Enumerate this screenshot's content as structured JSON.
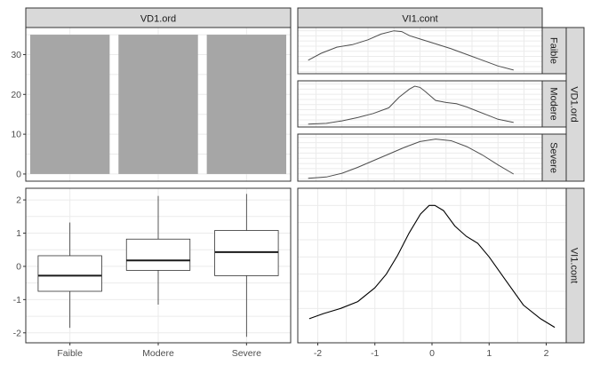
{
  "chart_data": [
    {
      "type": "bar",
      "panel": "top-left",
      "col_strip": "VD1.ord",
      "categories": [
        "Faible",
        "Modere",
        "Severe"
      ],
      "values": [
        35,
        35,
        35
      ],
      "ylim": [
        -1.8,
        36.8
      ],
      "yticks": [
        "0",
        "10",
        "20",
        "30"
      ],
      "bar_color": "#a6a6a6"
    },
    {
      "type": "line",
      "panel": "top-right",
      "col_strip": "VI1.cont",
      "row_strip": "VD1.ord",
      "xlim": [
        -2.35,
        2.35
      ],
      "series": [
        {
          "name": "Faible",
          "x": [
            -2.15,
            -1.9,
            -1.6,
            -1.3,
            -1.0,
            -0.75,
            -0.5,
            -0.35,
            -0.2,
            0.0,
            0.3,
            0.6,
            0.9,
            1.2,
            1.5,
            1.8
          ],
          "y": [
            0.28,
            0.45,
            0.6,
            0.66,
            0.78,
            0.92,
            1.0,
            0.98,
            0.88,
            0.8,
            0.68,
            0.56,
            0.42,
            0.28,
            0.14,
            0.04
          ]
        },
        {
          "name": "Modere",
          "x": [
            -2.15,
            -1.8,
            -1.5,
            -1.2,
            -0.9,
            -0.6,
            -0.4,
            -0.2,
            -0.1,
            0.0,
            0.1,
            0.3,
            0.5,
            0.7,
            0.9,
            1.1,
            1.3,
            1.5,
            1.8
          ],
          "y": [
            0.02,
            0.04,
            0.1,
            0.18,
            0.28,
            0.42,
            0.68,
            0.88,
            0.95,
            0.92,
            0.82,
            0.6,
            0.55,
            0.52,
            0.44,
            0.34,
            0.24,
            0.14,
            0.06
          ]
        },
        {
          "name": "Severe",
          "x": [
            -2.15,
            -1.8,
            -1.5,
            -1.2,
            -0.9,
            -0.6,
            -0.3,
            0.0,
            0.3,
            0.6,
            0.9,
            1.2,
            1.5,
            1.8
          ],
          "y": [
            0.02,
            0.05,
            0.14,
            0.28,
            0.44,
            0.6,
            0.76,
            0.9,
            0.96,
            0.92,
            0.78,
            0.58,
            0.34,
            0.12
          ]
        }
      ]
    },
    {
      "type": "box",
      "panel": "bottom-left",
      "categories": [
        "Faible",
        "Modere",
        "Severe"
      ],
      "boxes": [
        {
          "name": "Faible",
          "min": -1.85,
          "q1": -0.75,
          "median": -0.28,
          "q3": 0.32,
          "max": 1.32
        },
        {
          "name": "Modere",
          "min": -1.15,
          "q1": -0.12,
          "median": 0.18,
          "q3": 0.82,
          "max": 2.12
        },
        {
          "name": "Severe",
          "min": -2.12,
          "q1": -0.28,
          "median": 0.43,
          "q3": 1.08,
          "max": 2.18
        }
      ],
      "ylim": [
        -2.3,
        2.35
      ],
      "yticks": [
        "-2",
        "-1",
        "0",
        "1",
        "2"
      ]
    },
    {
      "type": "line",
      "panel": "bottom-right",
      "row_strip": "VI1.cont",
      "xlim": [
        -2.35,
        2.35
      ],
      "ylim": [
        0,
        0.45
      ],
      "xticks": [
        "-2",
        "-1",
        "0",
        "1",
        "2"
      ],
      "x": [
        -2.15,
        -1.9,
        -1.6,
        -1.3,
        -1.0,
        -0.8,
        -0.6,
        -0.4,
        -0.2,
        -0.05,
        0.05,
        0.2,
        0.4,
        0.6,
        0.8,
        1.0,
        1.3,
        1.6,
        1.9,
        2.15
      ],
      "y": [
        0.07,
        0.085,
        0.1,
        0.12,
        0.16,
        0.2,
        0.255,
        0.32,
        0.375,
        0.4,
        0.4,
        0.385,
        0.34,
        0.31,
        0.29,
        0.25,
        0.18,
        0.11,
        0.07,
        0.045
      ]
    }
  ]
}
